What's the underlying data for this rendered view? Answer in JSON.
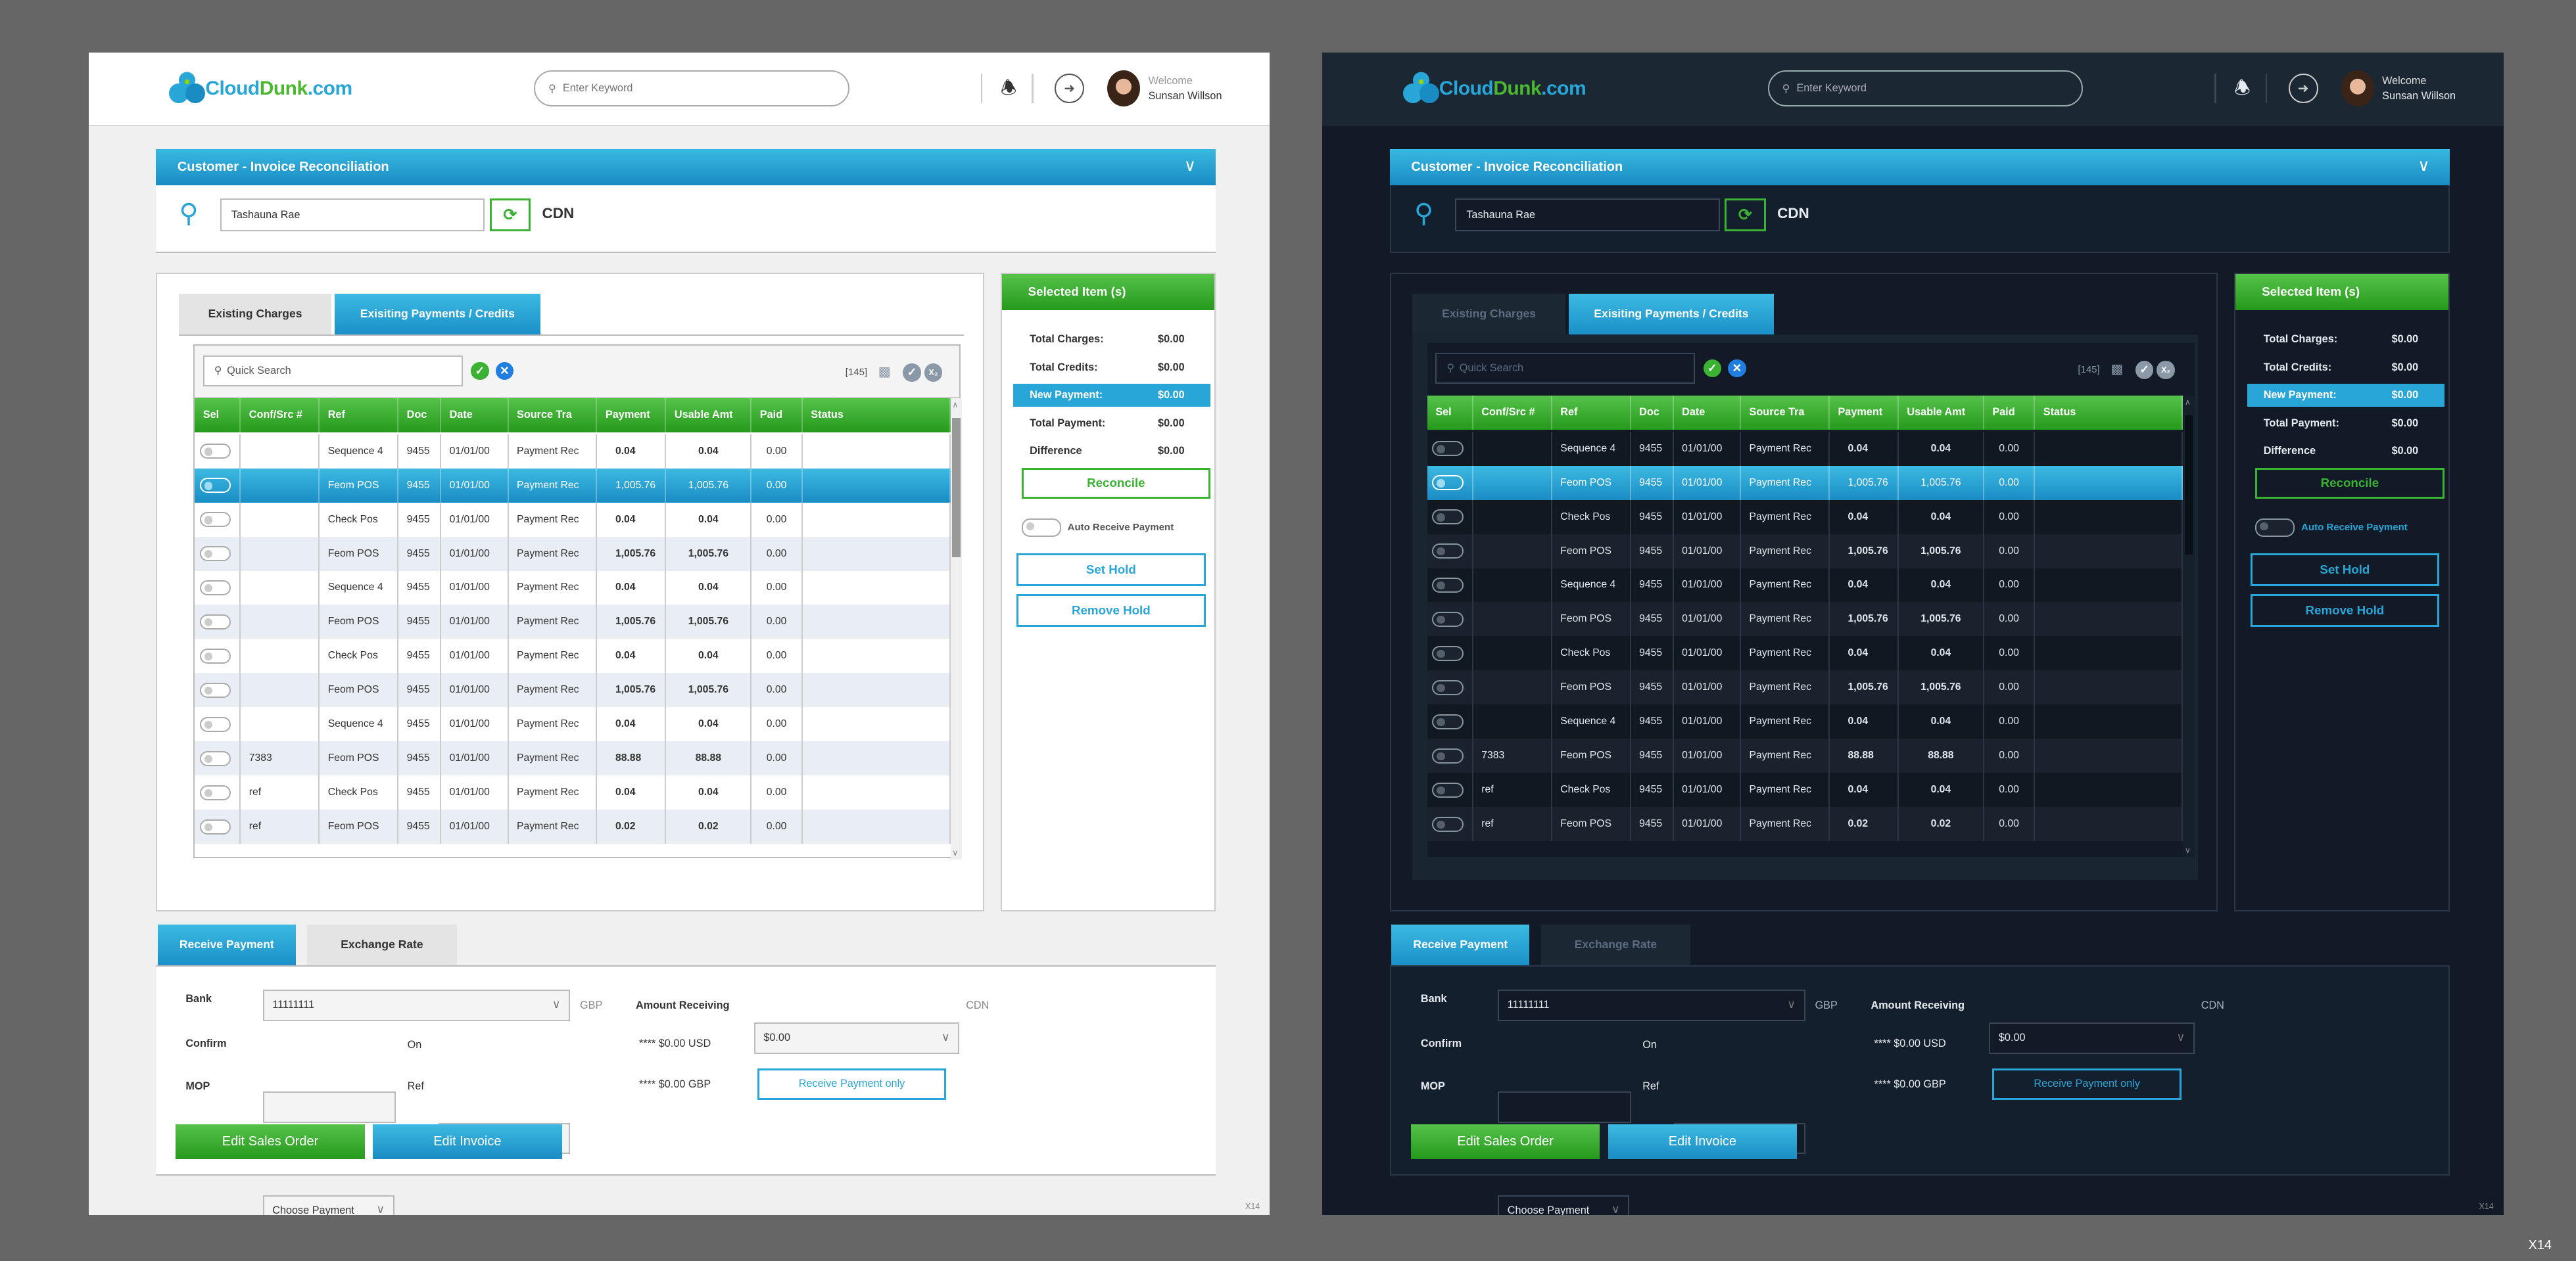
{
  "theme_colors": {
    "accent_blue": "#28a6d8",
    "accent_green": "#3cb234",
    "light_bg": "#f0f0f0",
    "dark_bg": "#111a26"
  },
  "header": {
    "logo": {
      "part1": "Cloud",
      "part2": "Dunk",
      "part3": ".com"
    },
    "search_placeholder": "Enter Keyword",
    "welcome": "Welcome",
    "user_name": "Sunsan Willson",
    "icons": [
      "search-icon",
      "bell-icon",
      "sign-in-icon",
      "avatar"
    ]
  },
  "accordion": {
    "title": "Customer - Invoice Reconciliation",
    "customer": "Tashauna Rae",
    "currency": "CDN"
  },
  "tabs": [
    {
      "label": "Existing Charges",
      "active": false
    },
    {
      "label": "Exisiting Payments / Credits",
      "active": true
    }
  ],
  "grid": {
    "search_placeholder": "Quick Search",
    "count": "[145]",
    "columns": [
      "Sel",
      "Conf/Src #",
      "Ref",
      "Doc",
      "Date",
      "Source Tra",
      "Payment",
      "Usable Amt",
      "Paid",
      "Status"
    ],
    "rows": [
      {
        "conf": "",
        "ref": "Sequence 4",
        "doc": "9455",
        "date": "01/01/00",
        "source": "Payment Rec",
        "payment": "0.04",
        "usable": "0.04",
        "paid": "0.00",
        "status": "",
        "selected": false
      },
      {
        "conf": "",
        "ref": "Feom POS",
        "doc": "9455",
        "date": "01/01/00",
        "source": "Payment Rec",
        "payment": "1,005.76",
        "usable": "1,005.76",
        "paid": "0.00",
        "status": "",
        "selected": true
      },
      {
        "conf": "",
        "ref": "Check Pos",
        "doc": "9455",
        "date": "01/01/00",
        "source": "Payment Rec",
        "payment": "0.04",
        "usable": "0.04",
        "paid": "0.00",
        "status": "",
        "selected": false
      },
      {
        "conf": "",
        "ref": "Feom POS",
        "doc": "9455",
        "date": "01/01/00",
        "source": "Payment Rec",
        "payment": "1,005.76",
        "usable": "1,005.76",
        "paid": "0.00",
        "status": "",
        "selected": false
      },
      {
        "conf": "",
        "ref": "Sequence 4",
        "doc": "9455",
        "date": "01/01/00",
        "source": "Payment Rec",
        "payment": "0.04",
        "usable": "0.04",
        "paid": "0.00",
        "status": "",
        "selected": false
      },
      {
        "conf": "",
        "ref": "Feom POS",
        "doc": "9455",
        "date": "01/01/00",
        "source": "Payment Rec",
        "payment": "1,005.76",
        "usable": "1,005.76",
        "paid": "0.00",
        "status": "",
        "selected": false
      },
      {
        "conf": "",
        "ref": "Check Pos",
        "doc": "9455",
        "date": "01/01/00",
        "source": "Payment Rec",
        "payment": "0.04",
        "usable": "0.04",
        "paid": "0.00",
        "status": "",
        "selected": false
      },
      {
        "conf": "",
        "ref": "Feom POS",
        "doc": "9455",
        "date": "01/01/00",
        "source": "Payment Rec",
        "payment": "1,005.76",
        "usable": "1,005.76",
        "paid": "0.00",
        "status": "",
        "selected": false
      },
      {
        "conf": "",
        "ref": "Sequence 4",
        "doc": "9455",
        "date": "01/01/00",
        "source": "Payment Rec",
        "payment": "0.04",
        "usable": "0.04",
        "paid": "0.00",
        "status": "",
        "selected": false
      },
      {
        "conf": "7383",
        "ref": "Feom POS",
        "doc": "9455",
        "date": "01/01/00",
        "source": "Payment Rec",
        "payment": "88.88",
        "usable": "88.88",
        "paid": "0.00",
        "status": "",
        "selected": false
      },
      {
        "conf": "ref",
        "ref": "Check Pos",
        "doc": "9455",
        "date": "01/01/00",
        "source": "Payment Rec",
        "payment": "0.04",
        "usable": "0.04",
        "paid": "0.00",
        "status": "",
        "selected": false
      },
      {
        "conf": "ref",
        "ref": "Feom POS",
        "doc": "9455",
        "date": "01/01/00",
        "source": "Payment Rec",
        "payment": "0.02",
        "usable": "0.02",
        "paid": "0.00",
        "status": "",
        "selected": false
      }
    ]
  },
  "selected_panel": {
    "title": "Selected Item (s)",
    "totals": [
      {
        "label": "Total Charges:",
        "value": "$0.00"
      },
      {
        "label": "Total Credits:",
        "value": "$0.00"
      },
      {
        "label": "New Payment:",
        "value": "$0.00",
        "highlighted": true
      },
      {
        "label": "Total Payment:",
        "value": "$0.00"
      },
      {
        "label": "Difference",
        "value": "$0.00"
      }
    ],
    "reconcile": "Reconcile",
    "auto_receive": "Auto Receive Payment",
    "auto_receive_on": false,
    "set_hold": "Set Hold",
    "remove_hold": "Remove Hold"
  },
  "bottom": {
    "tabs": [
      {
        "label": "Receive Payment",
        "active": true
      },
      {
        "label": "Exchange Rate",
        "active": false
      }
    ],
    "bank_label": "Bank",
    "bank_value": "11111111",
    "bank_currency": "GBP",
    "amount_label": "Amount Receiving",
    "amount_value": "$0.00",
    "amount_currency": "CDN",
    "confirm_label": "Confirm",
    "confirm_value": "",
    "on_label": "On",
    "on_value": "",
    "usd_text": "**** $0.00 USD",
    "mop_label": "MOP",
    "mop_value": "Choose Payment",
    "ref_label": "Ref",
    "ref_value": "",
    "gbp_text": "**** $0.00 GBP",
    "receive_only": "Receive Payment only",
    "edit_sales_order": "Edit Sales Order",
    "edit_invoice": "Edit Invoice"
  },
  "footer": {
    "panel_tag": "X14",
    "page_tag": "X14"
  }
}
